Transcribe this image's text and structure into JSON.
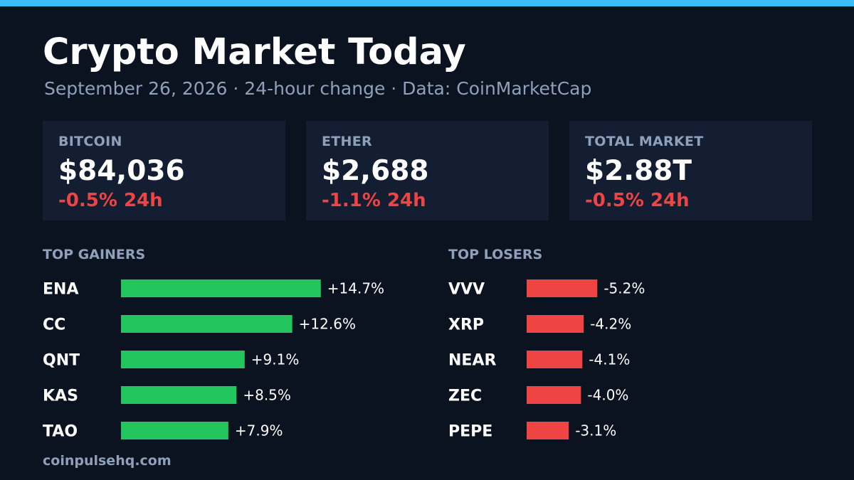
{
  "header": {
    "title": "Crypto Market Today",
    "subtitle": "September 26, 2026  ·  24-hour change  ·  Data: CoinMarketCap"
  },
  "cards": [
    {
      "label": "BITCOIN",
      "value": "$84,036",
      "change": "-0.5% 24h"
    },
    {
      "label": "ETHER",
      "value": "$2,688",
      "change": "-1.1% 24h"
    },
    {
      "label": "TOTAL MARKET",
      "value": "$2.88T",
      "change": "-0.5% 24h"
    }
  ],
  "colors": {
    "accent": "#38bdf8",
    "background": "#0b1220",
    "card": "#131e32",
    "muted": "#8fa1ba",
    "positive": "#22c55e",
    "negative": "#ef4444"
  },
  "chart_data": [
    {
      "type": "bar",
      "orientation": "horizontal",
      "title": "TOP GAINERS",
      "categories": [
        "ENA",
        "CC",
        "QNT",
        "KAS",
        "TAO"
      ],
      "values": [
        14.7,
        12.6,
        9.1,
        8.5,
        7.9
      ],
      "labels": [
        "+14.7%",
        "+12.6%",
        "+9.1%",
        "+8.5%",
        "+7.9%"
      ],
      "color": "#22c55e"
    },
    {
      "type": "bar",
      "orientation": "horizontal",
      "title": "TOP LOSERS",
      "categories": [
        "VVV",
        "XRP",
        "NEAR",
        "ZEC",
        "PEPE"
      ],
      "values": [
        -5.2,
        -4.2,
        -4.1,
        -4.0,
        -3.1
      ],
      "labels": [
        "-5.2%",
        "-4.2%",
        "-4.1%",
        "-4.0%",
        "-3.1%"
      ],
      "color": "#ef4444"
    }
  ],
  "footer": "coinpulsehq.com"
}
